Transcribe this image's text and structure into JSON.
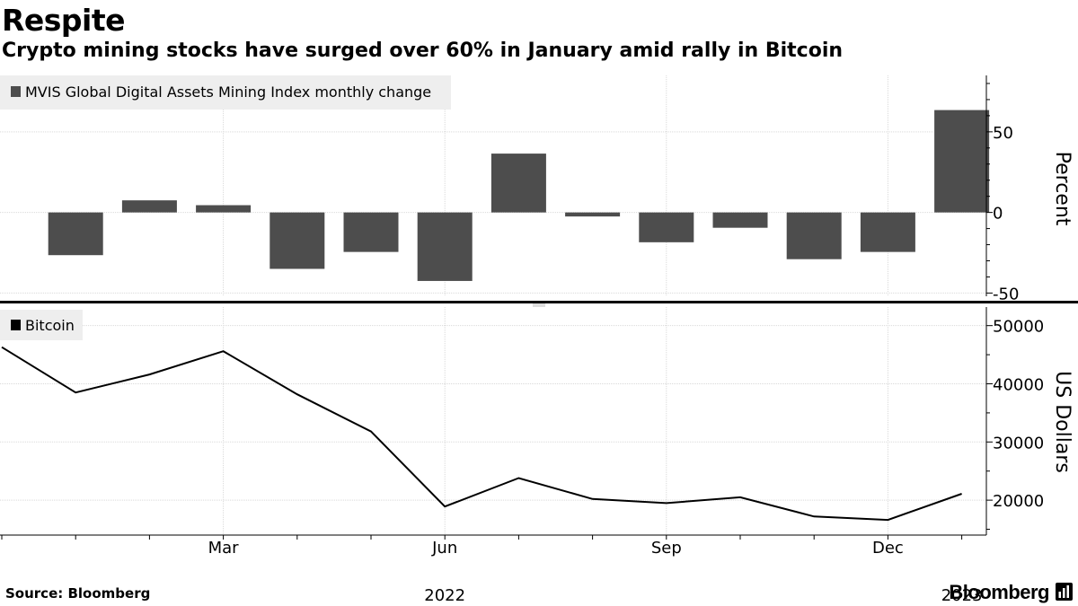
{
  "header": {
    "title": "Respite",
    "subtitle": "Crypto mining stocks have surged over 60% in January amid rally in Bitcoin"
  },
  "footer": {
    "source": "Source: Bloomberg",
    "brand": "Bloomberg"
  },
  "colors": {
    "bar": "#4d4d4d",
    "line": "#000000",
    "grid": "#d9d9d9",
    "legend_bg": "#eeeeee",
    "divider": "#000000"
  },
  "chart_data": [
    {
      "type": "bar",
      "legend": "MVIS Global Digital Assets Mining Index monthly change",
      "ylabel": "Percent",
      "categories": [
        "2022-01",
        "2022-02",
        "2022-03",
        "2022-04",
        "2022-05",
        "2022-06",
        "2022-07",
        "2022-08",
        "2022-09",
        "2022-10",
        "2022-11",
        "2022-12",
        "2023-01"
      ],
      "values": [
        -26.5,
        7.5,
        4.5,
        -35,
        -24.5,
        -42.5,
        36.5,
        -2.5,
        -18.5,
        -9.5,
        -29,
        -24.5,
        63.5
      ],
      "ylim": [
        -52,
        85
      ],
      "yticks": [
        50,
        0,
        -50
      ],
      "ytick_labels": [
        "50",
        "0",
        "-50"
      ],
      "grid": true,
      "legend_position": "top-left"
    },
    {
      "type": "line",
      "legend": "Bitcoin",
      "ylabel": "US Dollars",
      "x": [
        "2021-12",
        "2022-01",
        "2022-02",
        "2022-03",
        "2022-04",
        "2022-05",
        "2022-06",
        "2022-07",
        "2022-08",
        "2022-09",
        "2022-10",
        "2022-11",
        "2022-12",
        "2023-01"
      ],
      "values": [
        46300,
        38500,
        41600,
        45600,
        38200,
        31800,
        18900,
        23800,
        20200,
        19500,
        20500,
        17200,
        16600,
        21100
      ],
      "ylim": [
        14000,
        53500
      ],
      "yticks": [
        50000,
        40000,
        30000,
        20000
      ],
      "ytick_labels": [
        "50000",
        "40000",
        "30000",
        "20000"
      ],
      "grid": true,
      "legend_position": "top-left"
    }
  ],
  "x_axis": {
    "ticks": [
      {
        "month": "2022-03",
        "label": "Mar"
      },
      {
        "month": "2022-06",
        "label": "Jun"
      },
      {
        "month": "2022-09",
        "label": "Sep"
      },
      {
        "month": "2022-12",
        "label": "Dec"
      }
    ],
    "year_labels": [
      {
        "month": "2022-06",
        "label": "2022"
      },
      {
        "month": "2023-01",
        "label": "2023"
      }
    ]
  }
}
